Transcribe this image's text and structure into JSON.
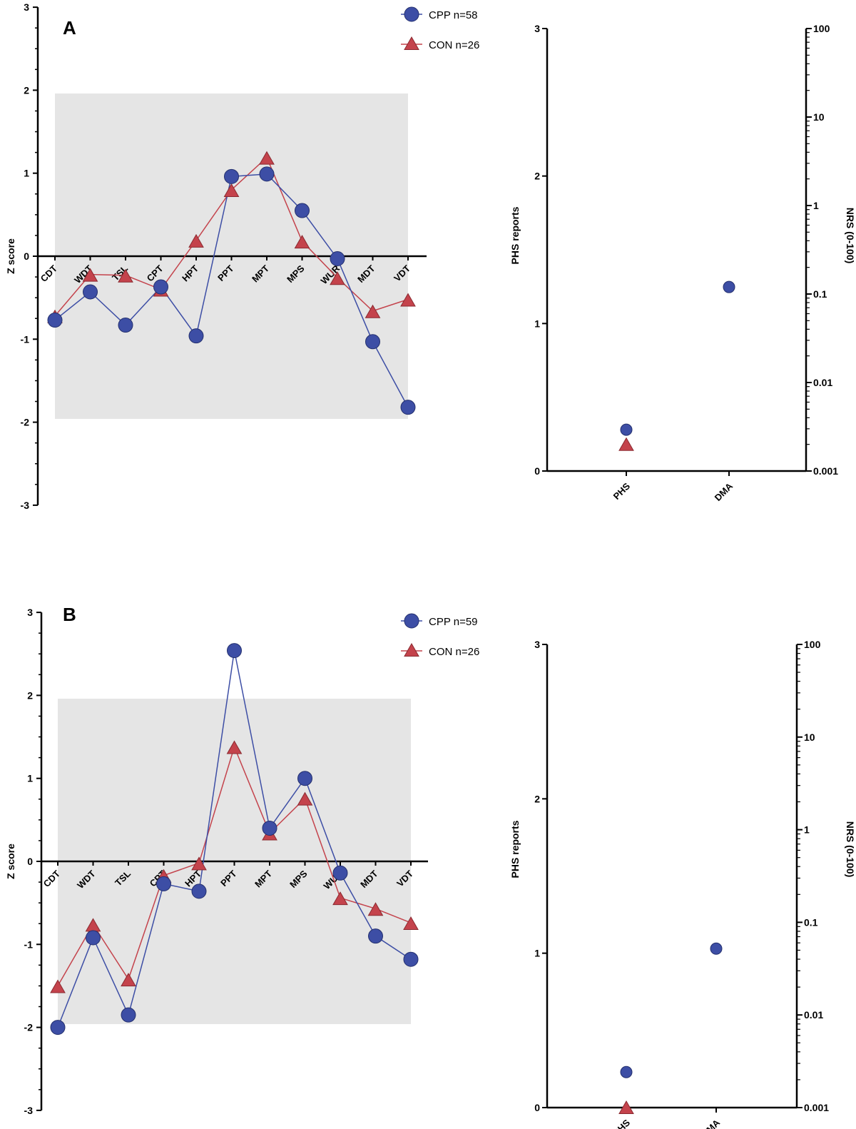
{
  "colors": {
    "cpp": "#3d4ea5",
    "con": "#c4434c",
    "band": "#e5e5e5",
    "axis": "#000000"
  },
  "chart_data": [
    {
      "type": "line",
      "panel": "A",
      "title": "",
      "xlabel": "",
      "ylabel": "Z score",
      "ylim": [
        -3,
        3
      ],
      "yticks": [
        "3",
        "2",
        "1",
        "0",
        "-1",
        "-2",
        "-3"
      ],
      "normal_band": [
        -1.96,
        1.96
      ],
      "categories": [
        "CDT",
        "WDT",
        "TSL",
        "CPT",
        "HPT",
        "PPT",
        "MPT",
        "MPS",
        "WUR",
        "MDT",
        "VDT"
      ],
      "series": [
        {
          "name": "CPP n=58",
          "marker": "circle",
          "values": [
            -0.77,
            -0.43,
            -0.83,
            -0.37,
            -0.96,
            0.96,
            0.99,
            0.55,
            -0.03,
            -1.03,
            -1.82
          ]
        },
        {
          "name": "CON n=26",
          "marker": "triangle",
          "values": [
            -0.72,
            -0.22,
            -0.23,
            -0.4,
            0.19,
            0.8,
            1.19,
            0.18,
            -0.26,
            -0.66,
            -0.52
          ]
        }
      ],
      "legend": [
        "CPP n=58",
        "CON n=26"
      ],
      "legend_position": "top-right"
    },
    {
      "type": "scatter",
      "panel": "A",
      "ylabel": "PHS reports",
      "ylim": [
        0,
        3
      ],
      "yticks": [
        "3",
        "2",
        "1",
        "0"
      ],
      "y2label": "NRS (0-100)",
      "y2lim": [
        0.001,
        100
      ],
      "y2scale": "log",
      "y2ticks": [
        "100",
        "10",
        "1",
        "0.1",
        "0.01",
        "0.001"
      ],
      "categories": [
        "PHS",
        "DMA"
      ],
      "series": [
        {
          "name": "CPP",
          "marker": "circle",
          "points": [
            {
              "category": "PHS",
              "axis": "left",
              "value": 0.28
            },
            {
              "category": "DMA",
              "axis": "right",
              "value": 0.12
            }
          ]
        },
        {
          "name": "CON",
          "marker": "triangle",
          "points": [
            {
              "category": "PHS",
              "axis": "left",
              "value": 0.18
            }
          ]
        }
      ]
    },
    {
      "type": "line",
      "panel": "B",
      "title": "",
      "xlabel": "",
      "ylabel": "Z score",
      "ylim": [
        -3,
        3
      ],
      "yticks": [
        "3",
        "2",
        "1",
        "0",
        "-1",
        "-2",
        "-3"
      ],
      "normal_band": [
        -1.96,
        1.96
      ],
      "categories": [
        "CDT",
        "WDT",
        "TSL",
        "CPT",
        "HPT",
        "PPT",
        "MPT",
        "MPS",
        "WUR",
        "MDT",
        "VDT"
      ],
      "series": [
        {
          "name": "CPP n=59",
          "marker": "circle",
          "values": [
            -2.0,
            -0.92,
            -1.85,
            -0.27,
            -0.36,
            2.54,
            0.4,
            1.0,
            -0.14,
            -0.9,
            -1.18
          ]
        },
        {
          "name": "CON n=26",
          "marker": "triangle",
          "values": [
            -1.5,
            -0.76,
            -1.42,
            -0.17,
            -0.02,
            1.38,
            0.34,
            0.76,
            -0.44,
            -0.57,
            -0.74
          ]
        }
      ],
      "legend": [
        "CPP n=59",
        "CON n=26"
      ],
      "legend_position": "top-right"
    },
    {
      "type": "scatter",
      "panel": "B",
      "ylabel": "PHS reports",
      "ylim": [
        0,
        3
      ],
      "yticks": [
        "3",
        "2",
        "1",
        "0"
      ],
      "y2label": "NRS (0-100)",
      "y2lim": [
        0.001,
        100
      ],
      "y2scale": "log",
      "y2ticks": [
        "100",
        "10",
        "1",
        "0.1",
        "0.01",
        "0.001"
      ],
      "categories": [
        "PHS",
        "DMA"
      ],
      "series": [
        {
          "name": "CPP",
          "marker": "circle",
          "points": [
            {
              "category": "PHS",
              "axis": "left",
              "value": 0.23
            },
            {
              "category": "DMA",
              "axis": "right",
              "value": 0.052
            }
          ]
        },
        {
          "name": "CON",
          "marker": "triangle",
          "points": [
            {
              "category": "PHS",
              "axis": "left",
              "value": 0.0
            }
          ]
        }
      ]
    }
  ]
}
